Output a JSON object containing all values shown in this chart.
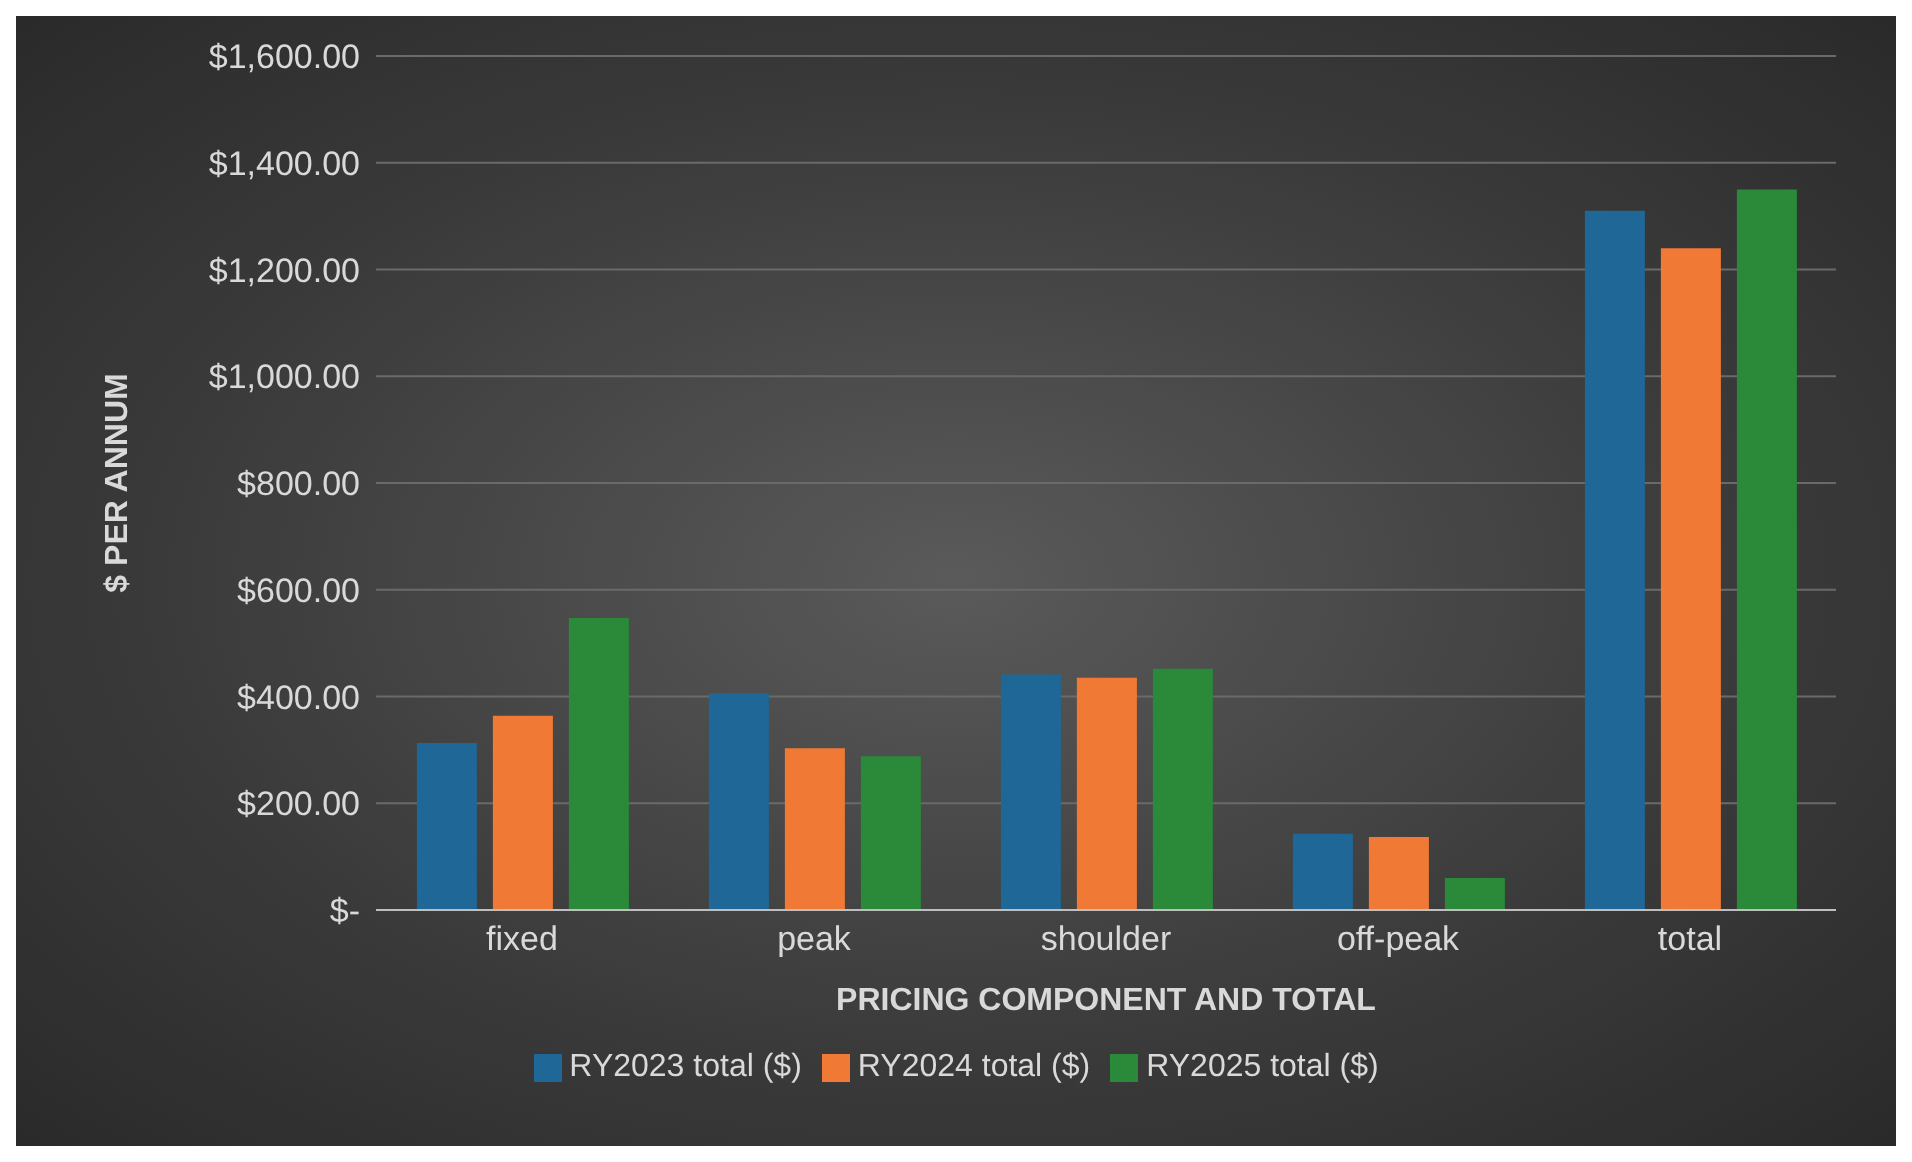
{
  "chart_data": {
    "type": "bar",
    "xlabel": "PRICING COMPONENT AND TOTAL",
    "ylabel": "$ PER ANNUM",
    "categories": [
      "fixed",
      "peak",
      "shoulder",
      "off-peak",
      "total"
    ],
    "series": [
      {
        "name": "RY2023 total ($)",
        "color": "#1e6796",
        "values": [
          313,
          406,
          441,
          143,
          1310
        ]
      },
      {
        "name": "RY2024 total ($)",
        "color": "#f07a35",
        "values": [
          364,
          303,
          435,
          137,
          1240
        ]
      },
      {
        "name": "RY2025 total ($)",
        "color": "#2a8a3a",
        "values": [
          547,
          288,
          452,
          60,
          1350
        ]
      }
    ],
    "ylim": [
      0,
      1600
    ],
    "yticks": [
      {
        "value": 0,
        "label": "$-"
      },
      {
        "value": 200,
        "label": "$200.00"
      },
      {
        "value": 400,
        "label": "$400.00"
      },
      {
        "value": 600,
        "label": "$600.00"
      },
      {
        "value": 800,
        "label": "$800.00"
      },
      {
        "value": 1000,
        "label": "$1,000.00"
      },
      {
        "value": 1200,
        "label": "$1,200.00"
      },
      {
        "value": 1400,
        "label": "$1,400.00"
      },
      {
        "value": 1600,
        "label": "$1,600.00"
      }
    ],
    "grid": "y",
    "legend": "bottom"
  }
}
